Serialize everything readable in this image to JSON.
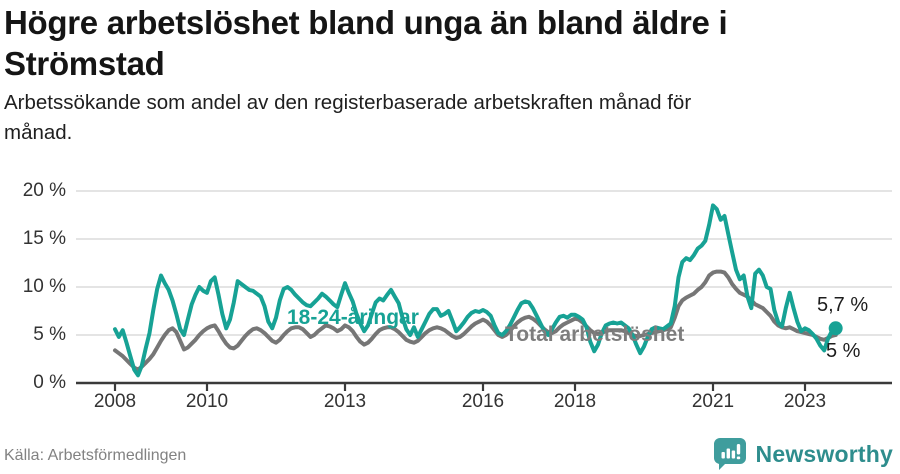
{
  "header": {
    "title": "Högre arbetslöshet bland unga än bland äldre i\nStrömstad",
    "subtitle": "Arbetssökande som andel av den registerbaserade arbetskraften månad för\nmånad."
  },
  "chart_data": {
    "type": "line",
    "x_start": "2008-01",
    "x_end": "2023-09",
    "x_step": "monthly",
    "xticks": [
      2008,
      2010,
      2013,
      2016,
      2018,
      2021,
      2023
    ],
    "yticks": [
      0,
      5,
      10,
      15,
      20
    ],
    "ytick_suffix": " %",
    "ylim": [
      0,
      20
    ],
    "grid": "horizontal",
    "legend_position": "inline-labels",
    "series": [
      {
        "name": "18-24-åringar",
        "color": "#17a295",
        "end_label": "5,7 %",
        "end_dot": true,
        "values": [
          5.6,
          4.8,
          5.5,
          4.2,
          2.8,
          1.4,
          0.8,
          1.8,
          3.6,
          5.2,
          7.6,
          9.8,
          11.2,
          10.4,
          9.7,
          8.6,
          7.2,
          5.6,
          5.0,
          6.6,
          8.2,
          9.2,
          10.0,
          9.6,
          9.4,
          10.6,
          11.0,
          9.2,
          7.2,
          5.7,
          6.6,
          8.4,
          10.6,
          10.3,
          10.0,
          9.7,
          9.6,
          9.3,
          9.0,
          8.0,
          6.4,
          5.7,
          6.8,
          8.6,
          9.8,
          10.0,
          9.7,
          9.2,
          8.8,
          8.4,
          8.1,
          8.0,
          8.4,
          8.8,
          9.3,
          9.0,
          8.6,
          8.2,
          7.9,
          9.2,
          10.4,
          9.4,
          8.5,
          7.2,
          6.2,
          5.4,
          6.0,
          7.2,
          8.4,
          8.8,
          8.6,
          9.2,
          9.7,
          9.0,
          8.3,
          6.8,
          5.6,
          5.0,
          5.8,
          4.8,
          5.6,
          6.4,
          7.2,
          7.7,
          7.7,
          7.0,
          7.2,
          7.5,
          6.5,
          5.4,
          5.8,
          6.3,
          6.9,
          7.3,
          7.5,
          7.4,
          7.6,
          7.4,
          7.0,
          6.0,
          5.2,
          5.0,
          5.4,
          6.0,
          6.8,
          7.6,
          8.3,
          8.5,
          8.4,
          7.8,
          7.0,
          6.2,
          5.4,
          5.0,
          5.6,
          6.3,
          6.9,
          7.0,
          6.8,
          7.1,
          7.1,
          6.9,
          6.6,
          5.8,
          4.3,
          3.3,
          4.0,
          5.2,
          6.0,
          6.2,
          6.3,
          6.2,
          6.3,
          6.0,
          5.7,
          5.0,
          4.0,
          3.1,
          3.8,
          4.8,
          5.6,
          5.8,
          5.7,
          5.6,
          5.9,
          6.2,
          8.0,
          11.0,
          12.6,
          13.0,
          12.8,
          13.3,
          14.0,
          14.3,
          14.8,
          16.5,
          18.5,
          18.1,
          17.0,
          17.4,
          15.5,
          13.6,
          11.8,
          10.8,
          11.2,
          9.0,
          7.8,
          11.4,
          11.8,
          11.2,
          10.0,
          9.8,
          7.6,
          6.3,
          5.9,
          7.8,
          9.4,
          7.8,
          6.4,
          5.4,
          5.7,
          5.5,
          5.1,
          4.6,
          3.9,
          3.4,
          4.6,
          5.4,
          5.7
        ]
      },
      {
        "name": "Total arbetslöshet",
        "color": "#767676",
        "end_label": "5 %",
        "end_dot": false,
        "values": [
          3.4,
          3.1,
          2.8,
          2.4,
          2.0,
          1.6,
          1.4,
          1.7,
          2.1,
          2.5,
          3.0,
          3.7,
          4.4,
          5.0,
          5.5,
          5.7,
          5.3,
          4.4,
          3.5,
          3.7,
          4.1,
          4.5,
          5.0,
          5.4,
          5.7,
          5.9,
          6.0,
          5.4,
          4.7,
          4.1,
          3.7,
          3.6,
          3.9,
          4.4,
          4.9,
          5.3,
          5.6,
          5.7,
          5.5,
          5.2,
          4.8,
          4.4,
          4.2,
          4.5,
          5.0,
          5.4,
          5.7,
          5.8,
          5.8,
          5.6,
          5.2,
          4.8,
          5.0,
          5.4,
          5.7,
          6.0,
          5.9,
          5.7,
          5.4,
          5.6,
          6.0,
          5.8,
          5.4,
          4.8,
          4.3,
          4.0,
          4.2,
          4.6,
          5.1,
          5.5,
          5.7,
          5.8,
          5.8,
          5.6,
          5.3,
          4.9,
          4.5,
          4.3,
          4.2,
          4.4,
          4.8,
          5.2,
          5.5,
          5.7,
          5.8,
          5.7,
          5.5,
          5.2,
          4.9,
          4.7,
          4.8,
          5.1,
          5.5,
          5.9,
          6.2,
          6.4,
          6.6,
          6.4,
          6.0,
          5.5,
          5.0,
          4.8,
          5.0,
          5.4,
          5.9,
          6.3,
          6.6,
          6.8,
          6.9,
          6.7,
          6.4,
          6.0,
          5.6,
          5.3,
          5.2,
          5.4,
          5.8,
          6.1,
          6.3,
          6.5,
          6.7,
          6.6,
          6.3,
          5.9,
          5.5,
          5.2,
          5.1,
          5.2,
          5.4,
          5.5,
          5.5,
          5.5,
          5.5,
          5.4,
          5.2,
          5.0,
          4.9,
          4.9,
          5.0,
          5.1,
          5.2,
          5.3,
          5.4,
          5.5,
          5.6,
          5.8,
          6.8,
          8.0,
          8.6,
          8.9,
          9.1,
          9.3,
          9.7,
          10.0,
          10.5,
          11.2,
          11.5,
          11.6,
          11.6,
          11.5,
          11.0,
          10.3,
          9.8,
          9.4,
          9.2,
          9.0,
          8.6,
          8.2,
          8.0,
          7.8,
          7.4,
          7.0,
          6.4,
          6.0,
          5.8,
          5.7,
          5.8,
          5.6,
          5.4,
          5.3,
          5.2,
          5.1,
          5.0,
          4.8,
          4.6,
          4.5,
          4.7,
          4.9,
          5.0
        ]
      }
    ]
  },
  "footer": {
    "source": "Källa: Arbetsförmedlingen",
    "brand": "Newsworthy"
  },
  "colors": {
    "accent_teal": "#17a295",
    "series_gray": "#767676",
    "grid": "#dcdcdc",
    "axis": "#3a3a3a",
    "brand_bubble": "#3f9d9d",
    "brand_text": "#2e8d8d"
  }
}
